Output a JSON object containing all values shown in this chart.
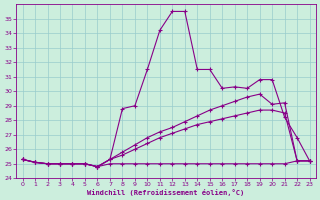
{
  "xlabel": "Windchill (Refroidissement éolien,°C)",
  "ylabel": "",
  "xlim": [
    -0.5,
    23.5
  ],
  "ylim": [
    24,
    36
  ],
  "yticks": [
    24,
    25,
    26,
    27,
    28,
    29,
    30,
    31,
    32,
    33,
    34,
    35
  ],
  "xticks": [
    0,
    1,
    2,
    3,
    4,
    5,
    6,
    7,
    8,
    9,
    10,
    11,
    12,
    13,
    14,
    15,
    16,
    17,
    18,
    19,
    20,
    21,
    22,
    23
  ],
  "bg_color": "#cceedd",
  "grid_color": "#99cccc",
  "line_color": "#880088",
  "line1_x": [
    0,
    1,
    2,
    3,
    4,
    5,
    6,
    7,
    8,
    9,
    10,
    11,
    12,
    13,
    14,
    15,
    16,
    17,
    18,
    19,
    20,
    21,
    22,
    23
  ],
  "line1_y": [
    25.3,
    25.1,
    25.0,
    25.0,
    25.0,
    25.0,
    24.8,
    25.0,
    25.0,
    25.0,
    25.0,
    25.0,
    25.0,
    25.0,
    25.0,
    25.0,
    25.0,
    25.0,
    25.0,
    25.0,
    25.0,
    25.0,
    25.2,
    25.2
  ],
  "line2_x": [
    0,
    1,
    2,
    3,
    4,
    5,
    6,
    7,
    8,
    9,
    10,
    11,
    12,
    13,
    14,
    15,
    16,
    17,
    18,
    19,
    20,
    21,
    22,
    23
  ],
  "line2_y": [
    25.3,
    25.1,
    25.0,
    25.0,
    25.0,
    25.0,
    24.8,
    25.3,
    28.8,
    29.0,
    31.5,
    34.2,
    35.5,
    35.5,
    31.5,
    31.5,
    30.2,
    30.3,
    30.2,
    30.8,
    30.8,
    28.2,
    26.8,
    25.2
  ],
  "line3_x": [
    0,
    1,
    2,
    3,
    4,
    5,
    6,
    7,
    8,
    9,
    10,
    11,
    12,
    13,
    14,
    15,
    16,
    17,
    18,
    19,
    20,
    21,
    22,
    23
  ],
  "line3_y": [
    25.3,
    25.1,
    25.0,
    25.0,
    25.0,
    25.0,
    24.8,
    25.3,
    25.6,
    26.0,
    26.4,
    26.8,
    27.1,
    27.4,
    27.7,
    27.9,
    28.1,
    28.3,
    28.5,
    28.7,
    28.7,
    28.5,
    25.2,
    25.2
  ],
  "line4_x": [
    0,
    1,
    2,
    3,
    4,
    5,
    6,
    7,
    8,
    9,
    10,
    11,
    12,
    13,
    14,
    15,
    16,
    17,
    18,
    19,
    20,
    21,
    22,
    23
  ],
  "line4_y": [
    25.3,
    25.1,
    25.0,
    25.0,
    25.0,
    25.0,
    24.8,
    25.3,
    25.8,
    26.3,
    26.8,
    27.2,
    27.5,
    27.9,
    28.3,
    28.7,
    29.0,
    29.3,
    29.6,
    29.8,
    29.1,
    29.2,
    25.2,
    25.2
  ]
}
